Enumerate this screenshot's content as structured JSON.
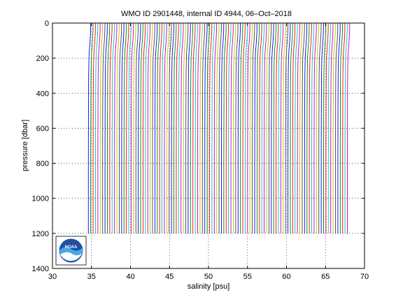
{
  "chart_data": {
    "type": "line",
    "title": "WMO ID 2901448, internal ID 4944, 06–Oct–2018",
    "xlabel": "salinity [psu]",
    "ylabel": "pressure [dbar]",
    "xlim": [
      30,
      70
    ],
    "ylim": [
      0,
      1400
    ],
    "y_reversed": true,
    "grid": true,
    "grid_style": "dotted",
    "x_ticks": [
      30,
      35,
      40,
      45,
      50,
      55,
      60,
      65,
      70
    ],
    "y_ticks": [
      0,
      200,
      400,
      600,
      800,
      1000,
      1200,
      1400
    ],
    "x_tick_labels": [
      "30",
      "35",
      "40",
      "45",
      "50",
      "55",
      "60",
      "65",
      "70"
    ],
    "y_tick_labels": [
      "0",
      "200",
      "400",
      "600",
      "800",
      "1000",
      "1200",
      "1400"
    ],
    "profile_count": 110,
    "first_profile_deep_salinity": 34.6,
    "last_profile_deep_salinity": 67.8,
    "profile_offset_psu": 0.3,
    "profile_pressure_levels": [
      0,
      50,
      100,
      150,
      200,
      300,
      400,
      600,
      800,
      1000,
      1100,
      1200
    ],
    "profile_relative_salinity_shape": [
      1.0,
      0.95,
      0.75,
      0.45,
      0.25,
      0.12,
      0.08,
      0.03,
      0.0,
      0.0,
      0.0,
      0.0
    ],
    "series_colors": [
      "#0000ff",
      "#008000",
      "#ff0000",
      "#00bfbf",
      "#bf00bf",
      "#bfbf00",
      "#404040"
    ],
    "logo": {
      "name": "NOAA",
      "icon": "noaa-logo-icon",
      "placement": "bottom-left"
    }
  }
}
